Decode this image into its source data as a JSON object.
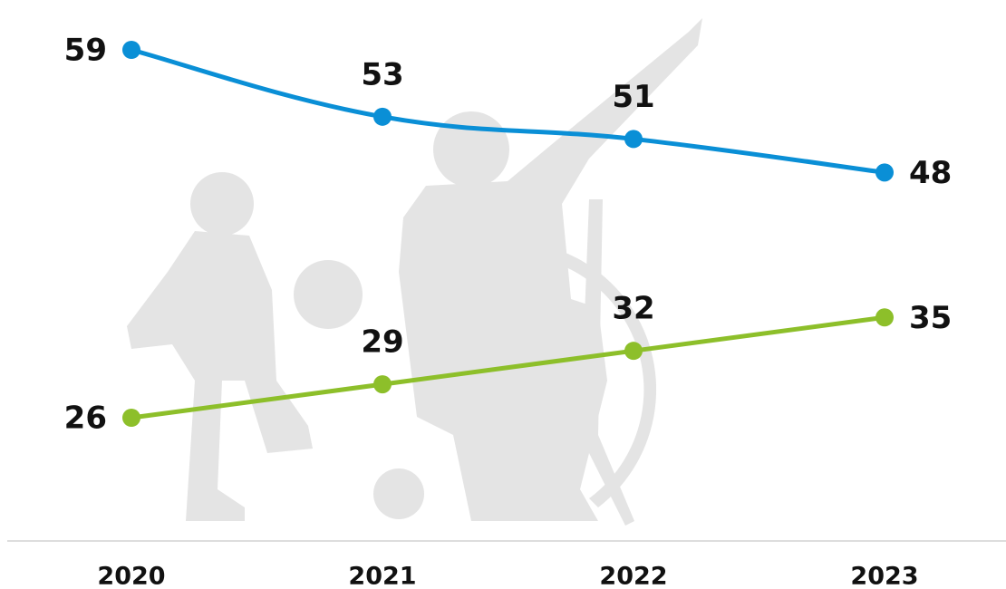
{
  "chart_data": {
    "type": "line",
    "categories": [
      "2020",
      "2021",
      "2022",
      "2023"
    ],
    "series": [
      {
        "color": "#0a8fd6",
        "values": [
          59,
          53,
          51,
          48
        ]
      },
      {
        "color": "#8dbf2a",
        "values": [
          26,
          29,
          32,
          35
        ]
      }
    ]
  }
}
